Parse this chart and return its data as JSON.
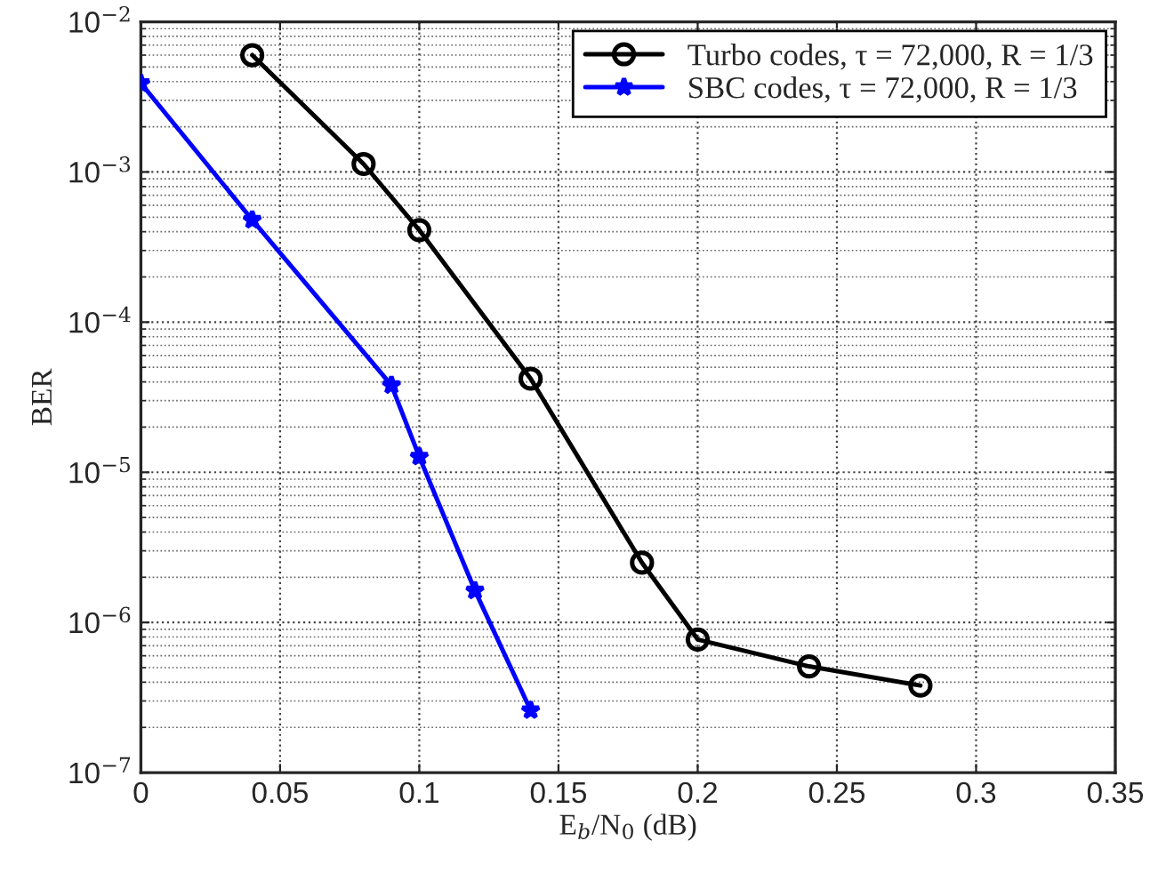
{
  "chart_data": {
    "type": "line",
    "xlabel": "E$_{b}$/N$_{0}$ (dB)",
    "ylabel": "BER",
    "series": [
      {
        "name": "Turbo codes, τ = 72,000, R = 1/3",
        "color": "#000000",
        "marker": "circle",
        "x": [
          0.04,
          0.08,
          0.1,
          0.14,
          0.18,
          0.2,
          0.24,
          0.28
        ],
        "values": [
          0.006,
          0.00113,
          0.00041,
          4.2e-05,
          2.5e-06,
          7.7e-07,
          5.1e-07,
          3.8e-07
        ]
      },
      {
        "name": "SBC codes, τ = 72,000, R = 1/3",
        "color": "#0000ff",
        "marker": "star",
        "x": [
          0,
          0.04,
          0.09,
          0.1,
          0.12,
          0.14
        ],
        "values": [
          0.0039,
          0.00048,
          3.8e-05,
          1.27e-05,
          1.63e-06,
          2.6e-07
        ]
      }
    ],
    "log": "y",
    "xlim": [
      0,
      0.35
    ],
    "xticks": [
      0,
      0.05,
      0.1,
      0.15,
      0.2,
      0.25,
      0.3,
      0.35
    ],
    "ylim": [
      1e-07,
      0.01
    ],
    "yticks": [
      {
        "value": 1e-07,
        "label": "10$^{−7}$"
      },
      {
        "value": 1e-06,
        "label": "10$^{−6}$"
      },
      {
        "value": 1e-05,
        "label": "10$^{−5}$"
      },
      {
        "value": 0.0001,
        "label": "10$^{−4}$"
      },
      {
        "value": 0.001,
        "label": "10$^{−3}$"
      },
      {
        "value": 0.01,
        "label": "10$^{−2}$"
      }
    ],
    "grid": true,
    "line_style": "solid",
    "legend": "top right"
  }
}
